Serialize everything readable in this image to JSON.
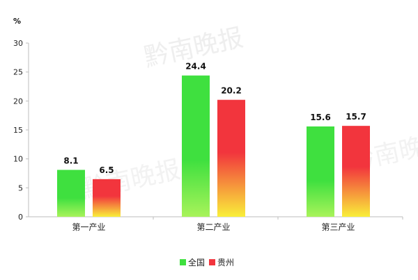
{
  "chart_data": {
    "type": "bar",
    "y_unit": "%",
    "ylim": [
      0,
      30
    ],
    "yticks": [
      0,
      5,
      10,
      15,
      20,
      25,
      30
    ],
    "grid": false,
    "legend_position": "bottom",
    "categories": [
      "第一产业",
      "第二产业",
      "第三产业"
    ],
    "series": [
      {
        "name": "全国",
        "values": [
          8.1,
          24.4,
          15.6
        ],
        "value_labels": [
          "8.1",
          "24.4",
          "15.6"
        ],
        "color_top": "#3fe03f",
        "color_bottom": "#a8f35a"
      },
      {
        "name": "贵州",
        "values": [
          6.5,
          20.2,
          15.7
        ],
        "value_labels": [
          "6.5",
          "20.2",
          "15.7"
        ],
        "color_top": "#f2353d",
        "color_bottom": "#f9ef3a"
      }
    ]
  },
  "watermark": {
    "text": "黔南晚报",
    "color": "#e6e6e6"
  }
}
